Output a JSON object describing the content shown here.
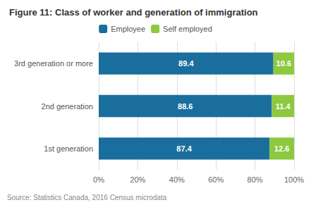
{
  "chart_data": {
    "type": "bar",
    "orientation": "horizontal",
    "stacked": true,
    "data_labels": true,
    "title": "Figure 11: Class of worker and generation of immigration",
    "annotations": [
      "Source: Statistics Canada, 2016 Census microdata"
    ],
    "categories": [
      "1st generation",
      "2nd generation",
      "3rd generation or more"
    ],
    "series": [
      {
        "name": "Employee",
        "color": "#1a6e9e",
        "values": [
          87.4,
          88.6,
          89.4
        ]
      },
      {
        "name": "Self employed",
        "color": "#8dc83e",
        "values": [
          12.6,
          11.4,
          10.6
        ]
      }
    ],
    "xlim": [
      0,
      100
    ],
    "xticks": [
      {
        "value": 0,
        "label": "0%"
      },
      {
        "value": 20,
        "label": "20%"
      },
      {
        "value": 40,
        "label": "40%"
      },
      {
        "value": 60,
        "label": "60%"
      },
      {
        "value": 80,
        "label": "80%"
      },
      {
        "value": 100,
        "label": "100%"
      }
    ],
    "grid": true,
    "legend": "top"
  }
}
